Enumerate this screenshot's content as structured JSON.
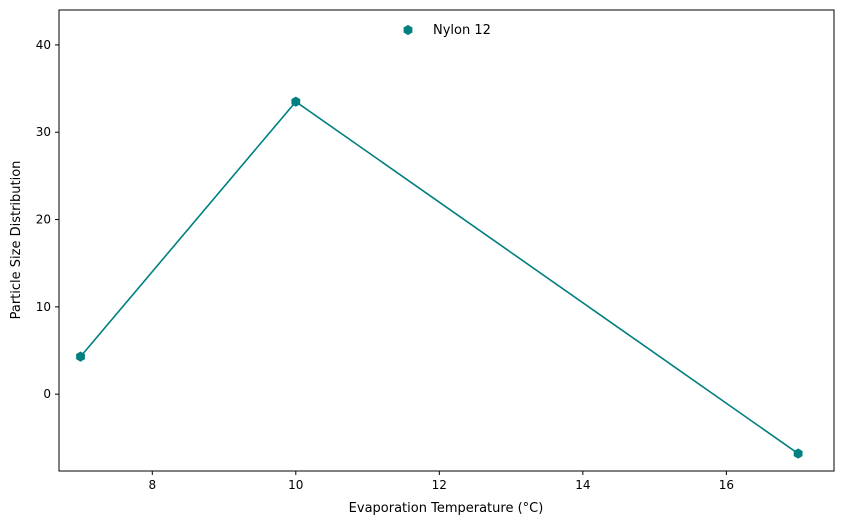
{
  "chart_data": {
    "type": "line",
    "title": "",
    "xlabel": "Evaporation Temperature (°C)",
    "ylabel": "Particle Size Distribution",
    "xlim": [
      6.7,
      17.5
    ],
    "ylim": [
      -8.8,
      44.0
    ],
    "xticks": [
      8,
      10,
      12,
      14,
      16
    ],
    "yticks": [
      0,
      10,
      20,
      30,
      40
    ],
    "grid": false,
    "legend_position": "top-center",
    "series": [
      {
        "name": "Nylon 12",
        "color": "#008080",
        "marker": "hexagon",
        "x": [
          7,
          10,
          17
        ],
        "y": [
          4.3,
          33.5,
          -6.8
        ]
      }
    ]
  }
}
